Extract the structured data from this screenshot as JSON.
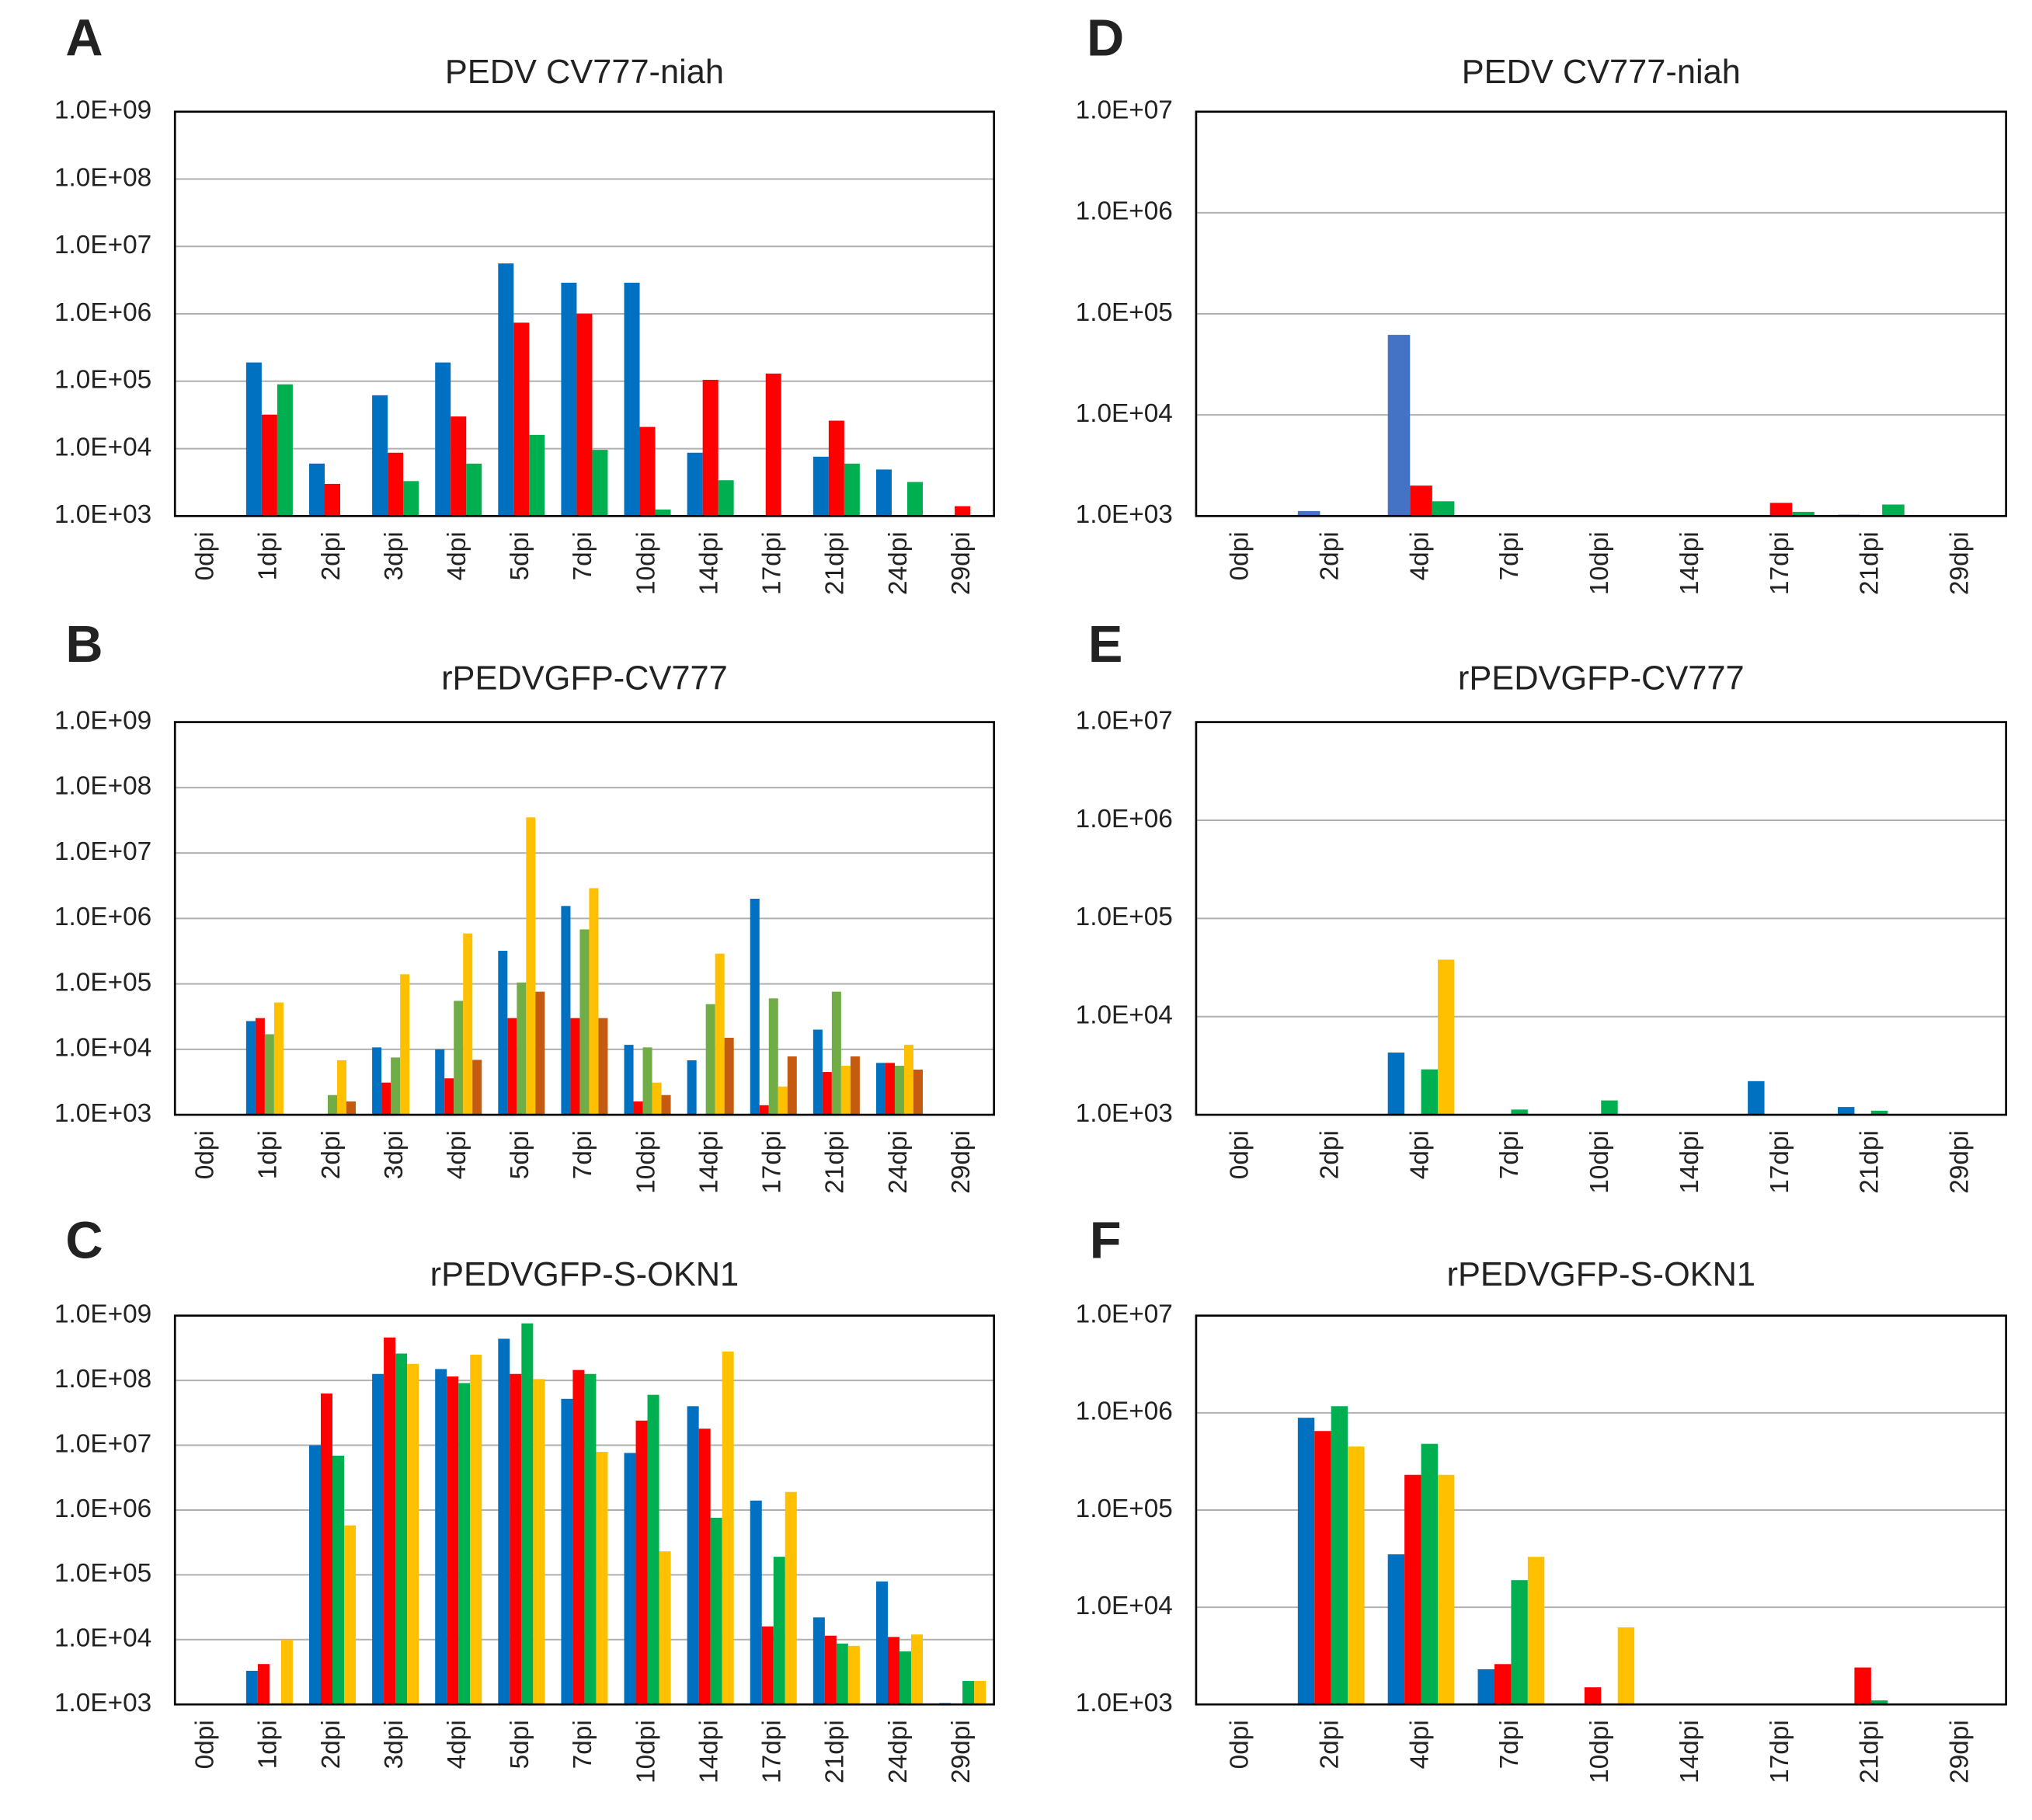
{
  "chart_data": [
    {
      "type": "bar",
      "panel": "A",
      "title": "PEDV CV777-niah",
      "log_scale": true,
      "grid": true,
      "categories": [
        "0dpi",
        "1dpi",
        "2dpi",
        "3dpi",
        "4dpi",
        "5dpi",
        "7dpi",
        "10dpi",
        "14dpi",
        "17dpi",
        "21dpi",
        "24dpi",
        "29dpi"
      ],
      "series": [
        {
          "color": "#0070c0",
          "values": [
            null,
            190000,
            6000,
            62000,
            190000,
            5600000,
            2900000,
            2900000,
            8700,
            null,
            7600,
            4900,
            null
          ]
        },
        {
          "color": "#ff0000",
          "values": [
            null,
            32000,
            3000,
            8700,
            30000,
            740000,
            1000000,
            21000,
            105000,
            130000,
            26000,
            null,
            1400
          ]
        },
        {
          "color": "#00b050",
          "values": [
            null,
            90000,
            null,
            3300,
            6000,
            16000,
            9600,
            1250,
            3400,
            null,
            6000,
            3200,
            null
          ]
        }
      ],
      "ylim": [
        1000,
        1000000000
      ],
      "yticks": [
        {
          "value": 1000,
          "label": "1.0E+03"
        },
        {
          "value": 10000,
          "label": "1.0E+04"
        },
        {
          "value": 100000,
          "label": "1.0E+05"
        },
        {
          "value": 1000000,
          "label": "1.0E+06"
        },
        {
          "value": 10000000,
          "label": "1.0E+07"
        },
        {
          "value": 100000000,
          "label": "1.0E+08"
        },
        {
          "value": 1000000000,
          "label": "1.0E+09"
        }
      ]
    },
    {
      "type": "bar",
      "panel": "B",
      "title": "rPEDVGFP-CV777",
      "log_scale": true,
      "grid": true,
      "categories": [
        "0dpi",
        "1dpi",
        "2dpi",
        "3dpi",
        "4dpi",
        "5dpi",
        "7dpi",
        "10dpi",
        "14dpi",
        "17dpi",
        "21dpi",
        "24dpi",
        "29dpi"
      ],
      "series": [
        {
          "color": "#0070c0",
          "values": [
            null,
            27000,
            null,
            10700,
            10000,
            320000,
            1550000,
            11700,
            6800,
            2000000,
            20000,
            6200,
            null
          ]
        },
        {
          "color": "#ff0000",
          "values": [
            null,
            30000,
            null,
            3100,
            3600,
            30000,
            30000,
            1600,
            null,
            1400,
            4500,
            6200,
            null
          ]
        },
        {
          "color": "#70ad47",
          "values": [
            null,
            17000,
            2000,
            7500,
            55000,
            105000,
            680000,
            10700,
            49000,
            60000,
            76000,
            5600,
            null
          ]
        },
        {
          "color": "#ffc000",
          "values": [
            null,
            52000,
            6800,
            140000,
            590000,
            35000000,
            2900000,
            3100,
            290000,
            2700,
            5600,
            11700,
            null
          ]
        },
        {
          "color": "#c55a11",
          "values": [
            null,
            null,
            1600,
            null,
            6900,
            76000,
            30000,
            2000,
            15000,
            7800,
            7800,
            4900,
            null
          ]
        }
      ],
      "ylim": [
        1000,
        1000000000
      ],
      "yticks": [
        {
          "value": 1000,
          "label": "1.0E+03"
        },
        {
          "value": 10000,
          "label": "1.0E+04"
        },
        {
          "value": 100000,
          "label": "1.0E+05"
        },
        {
          "value": 1000000,
          "label": "1.0E+06"
        },
        {
          "value": 10000000,
          "label": "1.0E+07"
        },
        {
          "value": 100000000,
          "label": "1.0E+08"
        },
        {
          "value": 1000000000,
          "label": "1.0E+09"
        }
      ]
    },
    {
      "type": "bar",
      "panel": "C",
      "title": "rPEDVGFP-S-OKN1",
      "log_scale": true,
      "grid": true,
      "categories": [
        "0dpi",
        "1dpi",
        "2dpi",
        "3dpi",
        "4dpi",
        "5dpi",
        "7dpi",
        "10dpi",
        "14dpi",
        "17dpi",
        "21dpi",
        "24dpi",
        "29dpi"
      ],
      "series": [
        {
          "color": "#0070c0",
          "values": [
            null,
            3300,
            10000000,
            126000000,
            150000000,
            440000000,
            52000000,
            7600000,
            40000000,
            1400000,
            22000,
            79000,
            1050
          ]
        },
        {
          "color": "#ff0000",
          "values": [
            null,
            4200,
            63000000,
            460000000,
            115000000,
            126000000,
            145000000,
            24000000,
            18000000,
            16000,
            11500,
            11000,
            null
          ]
        },
        {
          "color": "#00b050",
          "values": [
            null,
            null,
            6900000,
            260000000,
            91000000,
            760000000,
            126000000,
            60000000,
            760000,
            190000,
            8700,
            6600,
            2300
          ]
        },
        {
          "color": "#ffc000",
          "values": [
            null,
            10000,
            580000,
            180000000,
            250000000,
            105000000,
            7900000,
            230000,
            280000000,
            1900000,
            8000,
            12000,
            2300
          ]
        }
      ],
      "ylim": [
        1000,
        1000000000
      ],
      "yticks": [
        {
          "value": 1000,
          "label": "1.0E+03"
        },
        {
          "value": 10000,
          "label": "1.0E+04"
        },
        {
          "value": 100000,
          "label": "1.0E+05"
        },
        {
          "value": 1000000,
          "label": "1.0E+06"
        },
        {
          "value": 10000000,
          "label": "1.0E+07"
        },
        {
          "value": 100000000,
          "label": "1.0E+08"
        },
        {
          "value": 1000000000,
          "label": "1.0E+09"
        }
      ]
    },
    {
      "type": "bar",
      "panel": "D",
      "title": "PEDV CV777-niah",
      "log_scale": true,
      "grid": true,
      "categories": [
        "0dpi",
        "2dpi",
        "4dpi",
        "7dpi",
        "10dpi",
        "14dpi",
        "17dpi",
        "21dpi",
        "29dpi"
      ],
      "series": [
        {
          "color": "#4472c4",
          "values": [
            null,
            1120,
            62000,
            null,
            null,
            null,
            null,
            1030,
            null
          ]
        },
        {
          "color": "#ff0000",
          "values": [
            null,
            null,
            2000,
            null,
            null,
            null,
            1350,
            null,
            null
          ]
        },
        {
          "color": "#00b050",
          "values": [
            null,
            null,
            1400,
            null,
            null,
            null,
            1100,
            1300,
            null
          ]
        }
      ],
      "ylim": [
        1000,
        10000000
      ],
      "yticks": [
        {
          "value": 1000,
          "label": "1.0E+03"
        },
        {
          "value": 10000,
          "label": "1.0E+04"
        },
        {
          "value": 100000,
          "label": "1.0E+05"
        },
        {
          "value": 1000000,
          "label": "1.0E+06"
        },
        {
          "value": 10000000,
          "label": "1.0E+07"
        }
      ]
    },
    {
      "type": "bar",
      "panel": "E",
      "title": "rPEDVGFP-CV777",
      "log_scale": true,
      "grid": true,
      "categories": [
        "0dpi",
        "2dpi",
        "4dpi",
        "7dpi",
        "10dpi",
        "14dpi",
        "17dpi",
        "21dpi",
        "29dpi"
      ],
      "series": [
        {
          "color": "#0070c0",
          "values": [
            null,
            null,
            4300,
            null,
            null,
            null,
            2200,
            1200,
            null
          ]
        },
        {
          "color": "#ff0000",
          "values": [
            null,
            null,
            null,
            null,
            null,
            null,
            null,
            null,
            null
          ]
        },
        {
          "color": "#00b050",
          "values": [
            null,
            null,
            2900,
            1130,
            1400,
            null,
            null,
            1100,
            null
          ]
        },
        {
          "color": "#ffc000",
          "values": [
            null,
            null,
            38000,
            null,
            null,
            null,
            null,
            null,
            null
          ]
        }
      ],
      "ylim": [
        1000,
        10000000
      ],
      "yticks": [
        {
          "value": 1000,
          "label": "1.0E+03"
        },
        {
          "value": 10000,
          "label": "1.0E+04"
        },
        {
          "value": 100000,
          "label": "1.0E+05"
        },
        {
          "value": 1000000,
          "label": "1.0E+06"
        },
        {
          "value": 10000000,
          "label": "1.0E+07"
        }
      ]
    },
    {
      "type": "bar",
      "panel": "F",
      "title": "rPEDVGFP-S-OKN1",
      "log_scale": true,
      "grid": true,
      "categories": [
        "0dpi",
        "2dpi",
        "4dpi",
        "7dpi",
        "10dpi",
        "14dpi",
        "17dpi",
        "21dpi",
        "29dpi"
      ],
      "series": [
        {
          "color": "#0070c0",
          "values": [
            null,
            890000,
            35000,
            2300,
            null,
            null,
            null,
            null,
            null
          ]
        },
        {
          "color": "#ff0000",
          "values": [
            null,
            650000,
            230000,
            2600,
            1500,
            null,
            null,
            2400,
            null
          ]
        },
        {
          "color": "#00b050",
          "values": [
            null,
            1170000,
            480000,
            19000,
            null,
            null,
            null,
            1100,
            null
          ]
        },
        {
          "color": "#ffc000",
          "values": [
            null,
            450000,
            230000,
            33000,
            6200,
            null,
            null,
            null,
            null
          ]
        }
      ],
      "ylim": [
        1000,
        10000000
      ],
      "yticks": [
        {
          "value": 1000,
          "label": "1.0E+03"
        },
        {
          "value": 10000,
          "label": "1.0E+04"
        },
        {
          "value": 100000,
          "label": "1.0E+05"
        },
        {
          "value": 1000000,
          "label": "1.0E+06"
        },
        {
          "value": 10000000,
          "label": "1.0E+07"
        }
      ]
    }
  ]
}
